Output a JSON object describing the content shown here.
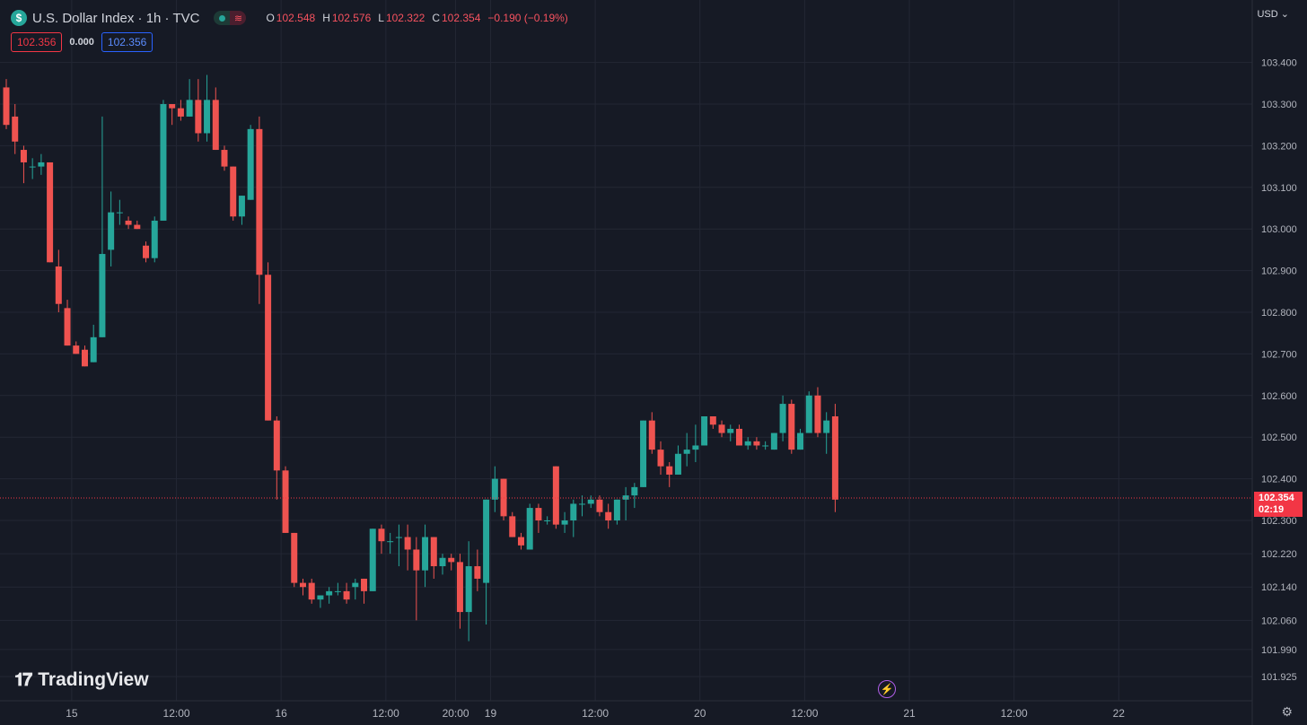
{
  "header": {
    "title": "U.S. Dollar Index · 1h · TVC",
    "symbol_icon": "$",
    "ohlc": {
      "o_label": "O",
      "o": "102.548",
      "h_label": "H",
      "h": "102.576",
      "l_label": "L",
      "l": "102.322",
      "c_label": "C",
      "c": "102.354",
      "change": "−0.190 (−0.19%)"
    },
    "sell_price": "102.356",
    "spread": "0.000",
    "buy_price": "102.356"
  },
  "currency": "USD",
  "last_price_tag": {
    "price": "102.354",
    "countdown": "02:19"
  },
  "brand": "TradingView",
  "colors": {
    "up": "#26a69a",
    "down": "#ef5350",
    "background": "#161a25",
    "grid": "#232734",
    "last_price": "#f23645"
  },
  "chart_data": {
    "type": "candlestick",
    "y_tick_labels": [
      "101.925",
      "101.990",
      "102.060",
      "102.140",
      "102.220",
      "102.300",
      "102.400",
      "102.500",
      "102.600",
      "102.700",
      "102.800",
      "102.900",
      "103.000",
      "103.100",
      "103.200",
      "103.300",
      "103.400"
    ],
    "x_tick_labels": [
      {
        "label": "15",
        "pos": 7.5
      },
      {
        "label": "12:00",
        "pos": 19.5
      },
      {
        "label": "16",
        "pos": 31.5
      },
      {
        "label": "12:00",
        "pos": 43.5
      },
      {
        "label": "20:00",
        "pos": 51.5
      },
      {
        "label": "19",
        "pos": 55.5
      },
      {
        "label": "12:00",
        "pos": 67.5
      },
      {
        "label": "20",
        "pos": 79.5
      },
      {
        "label": "12:00",
        "pos": 91.5
      },
      {
        "label": "21",
        "pos": 103.5
      },
      {
        "label": "12:00",
        "pos": 115.5
      },
      {
        "label": "22",
        "pos": 127.5
      }
    ],
    "last_price": 102.354,
    "candles": [
      [
        103.34,
        103.36,
        103.24,
        103.25
      ],
      [
        103.27,
        103.3,
        103.18,
        103.21
      ],
      [
        103.19,
        103.2,
        103.11,
        103.16
      ],
      [
        103.15,
        103.17,
        103.12,
        103.15
      ],
      [
        103.15,
        103.18,
        103.13,
        103.16
      ],
      [
        103.16,
        103.16,
        102.92,
        102.92
      ],
      [
        102.91,
        102.95,
        102.8,
        102.82
      ],
      [
        102.81,
        102.83,
        102.72,
        102.72
      ],
      [
        102.72,
        102.73,
        102.7,
        102.7
      ],
      [
        102.71,
        102.72,
        102.67,
        102.67
      ],
      [
        102.68,
        102.77,
        102.68,
        102.74
      ],
      [
        102.74,
        103.27,
        102.74,
        102.94
      ],
      [
        102.95,
        103.09,
        102.91,
        103.04
      ],
      [
        103.04,
        103.07,
        103.01,
        103.04
      ],
      [
        103.02,
        103.03,
        103.0,
        103.01
      ],
      [
        103.01,
        103.02,
        103.0,
        103.0
      ],
      [
        102.96,
        102.97,
        102.92,
        102.93
      ],
      [
        102.93,
        103.03,
        102.92,
        103.02
      ],
      [
        103.02,
        103.31,
        103.02,
        103.3
      ],
      [
        103.3,
        103.3,
        103.25,
        103.29
      ],
      [
        103.29,
        103.31,
        103.26,
        103.27
      ],
      [
        103.27,
        103.36,
        103.27,
        103.31
      ],
      [
        103.31,
        103.36,
        103.21,
        103.23
      ],
      [
        103.23,
        103.37,
        103.21,
        103.31
      ],
      [
        103.31,
        103.34,
        103.19,
        103.19
      ],
      [
        103.19,
        103.2,
        103.14,
        103.15
      ],
      [
        103.15,
        103.15,
        103.02,
        103.03
      ],
      [
        103.03,
        103.08,
        103.01,
        103.08
      ],
      [
        103.07,
        103.25,
        103.07,
        103.24
      ],
      [
        103.24,
        103.27,
        102.82,
        102.89
      ],
      [
        102.89,
        102.92,
        102.54,
        102.54
      ],
      [
        102.54,
        102.55,
        102.35,
        102.42
      ],
      [
        102.42,
        102.43,
        102.27,
        102.27
      ],
      [
        102.27,
        102.27,
        102.14,
        102.15
      ],
      [
        102.15,
        102.16,
        102.12,
        102.14
      ],
      [
        102.15,
        102.16,
        102.1,
        102.11
      ],
      [
        102.11,
        102.12,
        102.09,
        102.12
      ],
      [
        102.12,
        102.14,
        102.1,
        102.13
      ],
      [
        102.13,
        102.15,
        102.12,
        102.13
      ],
      [
        102.13,
        102.15,
        102.1,
        102.11
      ],
      [
        102.14,
        102.16,
        102.11,
        102.15
      ],
      [
        102.16,
        102.16,
        102.1,
        102.13
      ],
      [
        102.13,
        102.28,
        102.13,
        102.28
      ],
      [
        102.28,
        102.29,
        102.22,
        102.25
      ],
      [
        102.25,
        102.27,
        102.22,
        102.25
      ],
      [
        102.26,
        102.29,
        102.19,
        102.26
      ],
      [
        102.26,
        102.29,
        102.18,
        102.23
      ],
      [
        102.23,
        102.26,
        102.06,
        102.18
      ],
      [
        102.18,
        102.29,
        102.14,
        102.26
      ],
      [
        102.26,
        102.26,
        102.16,
        102.19
      ],
      [
        102.19,
        102.22,
        102.17,
        102.21
      ],
      [
        102.21,
        102.22,
        102.18,
        102.2
      ],
      [
        102.2,
        102.22,
        102.04,
        102.08
      ],
      [
        102.08,
        102.25,
        102.01,
        102.19
      ],
      [
        102.19,
        102.23,
        102.13,
        102.16
      ],
      [
        102.15,
        102.35,
        102.05,
        102.35
      ],
      [
        102.35,
        102.43,
        102.32,
        102.4
      ],
      [
        102.4,
        102.4,
        102.3,
        102.31
      ],
      [
        102.31,
        102.32,
        102.26,
        102.26
      ],
      [
        102.26,
        102.27,
        102.23,
        102.24
      ],
      [
        102.23,
        102.34,
        102.23,
        102.33
      ],
      [
        102.33,
        102.34,
        102.27,
        102.3
      ],
      [
        102.3,
        102.31,
        102.29,
        102.3
      ],
      [
        102.43,
        102.43,
        102.28,
        102.29
      ],
      [
        102.29,
        102.32,
        102.27,
        102.3
      ],
      [
        102.3,
        102.35,
        102.26,
        102.34
      ],
      [
        102.34,
        102.36,
        102.31,
        102.34
      ],
      [
        102.34,
        102.36,
        102.33,
        102.35
      ],
      [
        102.35,
        102.36,
        102.31,
        102.32
      ],
      [
        102.32,
        102.34,
        102.28,
        102.3
      ],
      [
        102.3,
        102.35,
        102.29,
        102.35
      ],
      [
        102.35,
        102.38,
        102.3,
        102.36
      ],
      [
        102.36,
        102.39,
        102.33,
        102.38
      ],
      [
        102.38,
        102.54,
        102.38,
        102.54
      ],
      [
        102.54,
        102.56,
        102.46,
        102.47
      ],
      [
        102.47,
        102.49,
        102.41,
        102.43
      ],
      [
        102.43,
        102.44,
        102.38,
        102.41
      ],
      [
        102.41,
        102.48,
        102.41,
        102.46
      ],
      [
        102.46,
        102.51,
        102.43,
        102.47
      ],
      [
        102.47,
        102.53,
        102.44,
        102.48
      ],
      [
        102.48,
        102.55,
        102.48,
        102.55
      ],
      [
        102.55,
        102.55,
        102.52,
        102.53
      ],
      [
        102.53,
        102.54,
        102.5,
        102.51
      ],
      [
        102.51,
        102.53,
        102.49,
        102.52
      ],
      [
        102.52,
        102.53,
        102.48,
        102.48
      ],
      [
        102.48,
        102.5,
        102.47,
        102.49
      ],
      [
        102.49,
        102.5,
        102.47,
        102.48
      ],
      [
        102.48,
        102.49,
        102.47,
        102.48
      ],
      [
        102.47,
        102.51,
        102.47,
        102.51
      ],
      [
        102.51,
        102.6,
        102.49,
        102.58
      ],
      [
        102.58,
        102.59,
        102.46,
        102.47
      ],
      [
        102.47,
        102.52,
        102.47,
        102.51
      ],
      [
        102.51,
        102.61,
        102.51,
        102.6
      ],
      [
        102.6,
        102.62,
        102.5,
        102.51
      ],
      [
        102.51,
        102.56,
        102.46,
        102.54
      ],
      [
        102.55,
        102.58,
        102.32,
        102.35
      ]
    ]
  }
}
